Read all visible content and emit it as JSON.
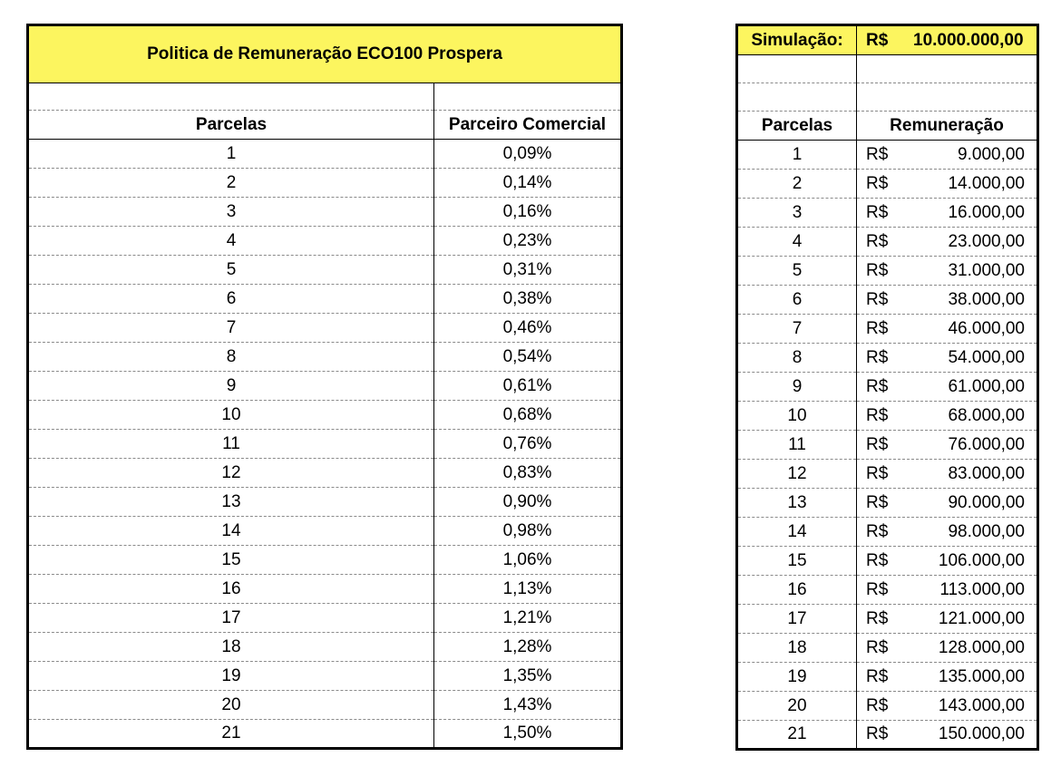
{
  "policy": {
    "title": "Politica de Remuneração ECO100 Prospera",
    "col_parcelas": "Parcelas",
    "col_parceiro": "Parceiro Comercial",
    "rows": [
      {
        "n": "1",
        "pct": "0,09%"
      },
      {
        "n": "2",
        "pct": "0,14%"
      },
      {
        "n": "3",
        "pct": "0,16%"
      },
      {
        "n": "4",
        "pct": "0,23%"
      },
      {
        "n": "5",
        "pct": "0,31%"
      },
      {
        "n": "6",
        "pct": "0,38%"
      },
      {
        "n": "7",
        "pct": "0,46%"
      },
      {
        "n": "8",
        "pct": "0,54%"
      },
      {
        "n": "9",
        "pct": "0,61%"
      },
      {
        "n": "10",
        "pct": "0,68%"
      },
      {
        "n": "11",
        "pct": "0,76%"
      },
      {
        "n": "12",
        "pct": "0,83%"
      },
      {
        "n": "13",
        "pct": "0,90%"
      },
      {
        "n": "14",
        "pct": "0,98%"
      },
      {
        "n": "15",
        "pct": "1,06%"
      },
      {
        "n": "16",
        "pct": "1,13%"
      },
      {
        "n": "17",
        "pct": "1,21%"
      },
      {
        "n": "18",
        "pct": "1,28%"
      },
      {
        "n": "19",
        "pct": "1,35%"
      },
      {
        "n": "20",
        "pct": "1,43%"
      },
      {
        "n": "21",
        "pct": "1,50%"
      }
    ]
  },
  "simulation": {
    "label": "Simulação:",
    "currency": "R$",
    "value": "10.000.000,00",
    "col_parcelas": "Parcelas",
    "col_remuneracao": "Remuneração",
    "rows": [
      {
        "n": "1",
        "cur": "R$",
        "amt": "9.000,00"
      },
      {
        "n": "2",
        "cur": "R$",
        "amt": "14.000,00"
      },
      {
        "n": "3",
        "cur": "R$",
        "amt": "16.000,00"
      },
      {
        "n": "4",
        "cur": "R$",
        "amt": "23.000,00"
      },
      {
        "n": "5",
        "cur": "R$",
        "amt": "31.000,00"
      },
      {
        "n": "6",
        "cur": "R$",
        "amt": "38.000,00"
      },
      {
        "n": "7",
        "cur": "R$",
        "amt": "46.000,00"
      },
      {
        "n": "8",
        "cur": "R$",
        "amt": "54.000,00"
      },
      {
        "n": "9",
        "cur": "R$",
        "amt": "61.000,00"
      },
      {
        "n": "10",
        "cur": "R$",
        "amt": "68.000,00"
      },
      {
        "n": "11",
        "cur": "R$",
        "amt": "76.000,00"
      },
      {
        "n": "12",
        "cur": "R$",
        "amt": "83.000,00"
      },
      {
        "n": "13",
        "cur": "R$",
        "amt": "90.000,00"
      },
      {
        "n": "14",
        "cur": "R$",
        "amt": "98.000,00"
      },
      {
        "n": "15",
        "cur": "R$",
        "amt": "106.000,00"
      },
      {
        "n": "16",
        "cur": "R$",
        "amt": "113.000,00"
      },
      {
        "n": "17",
        "cur": "R$",
        "amt": "121.000,00"
      },
      {
        "n": "18",
        "cur": "R$",
        "amt": "128.000,00"
      },
      {
        "n": "19",
        "cur": "R$",
        "amt": "135.000,00"
      },
      {
        "n": "20",
        "cur": "R$",
        "amt": "143.000,00"
      },
      {
        "n": "21",
        "cur": "R$",
        "amt": "150.000,00"
      }
    ]
  },
  "colors": {
    "highlight": "#fcf55f",
    "border": "#000000",
    "row_divider": "#8a8a8a"
  }
}
